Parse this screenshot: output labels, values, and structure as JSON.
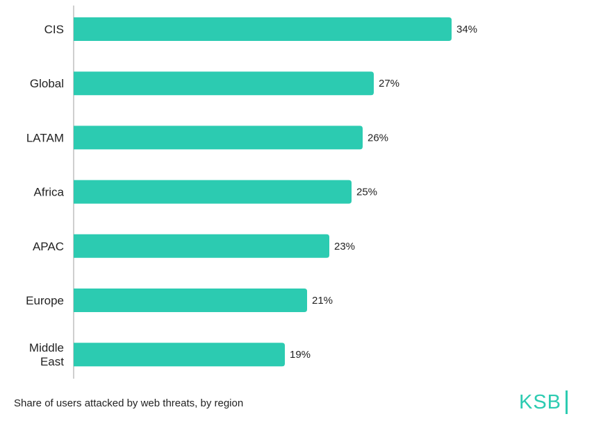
{
  "chart_data": {
    "type": "bar",
    "orientation": "horizontal",
    "categories": [
      "CIS",
      "Global",
      "LATAM",
      "Africa",
      "APAC",
      "Europe",
      "Middle East"
    ],
    "category_lines": [
      [
        "CIS"
      ],
      [
        "Global"
      ],
      [
        "LATAM"
      ],
      [
        "Africa"
      ],
      [
        "APAC"
      ],
      [
        "Europe"
      ],
      [
        "Middle",
        "East"
      ]
    ],
    "values": [
      34,
      27,
      26,
      25,
      23,
      21,
      19
    ],
    "value_labels": [
      "34%",
      "27%",
      "26%",
      "25%",
      "23%",
      "21%",
      "19%"
    ],
    "unit": "%",
    "xlim": [
      0,
      40
    ],
    "grid": false
  },
  "caption": "Share of users attacked by web threats, by region",
  "logo": {
    "text": "KSB"
  },
  "colors": {
    "bar": "#2ccbb1",
    "axis": "#bfbfbf",
    "text": "#222222",
    "brand": "#2ccbb1"
  }
}
